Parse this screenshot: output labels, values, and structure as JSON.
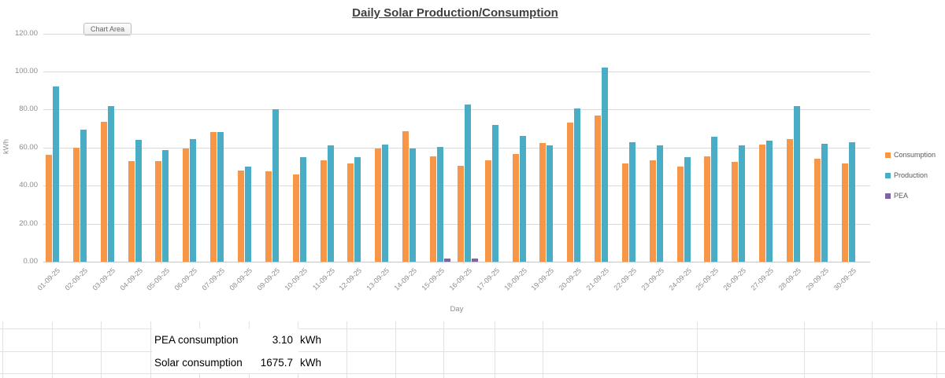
{
  "chart_area_label": "Chart Area",
  "chart_data": {
    "type": "bar",
    "title": "Daily Solar Production/Consumption",
    "xlabel": "Day",
    "ylabel": "kWh",
    "ylim": [
      0,
      120
    ],
    "y_ticks": [
      0,
      20,
      40,
      60,
      80,
      100,
      120
    ],
    "y_tick_labels": [
      "0.00",
      "20.00",
      "40.00",
      "60.00",
      "80.00",
      "100.00",
      "120.00"
    ],
    "grid": true,
    "legend_position": "right",
    "categories": [
      "01-09-25",
      "02-09-25",
      "03-09-25",
      "04-09-25",
      "05-09-25",
      "06-09-25",
      "07-09-25",
      "08-09-25",
      "09-09-25",
      "10-09-25",
      "11-09-25",
      "12-09-25",
      "13-09-25",
      "14-09-25",
      "15-09-25",
      "16-09-25",
      "17-09-25",
      "18-09-25",
      "19-09-25",
      "20-09-25",
      "21-09-25",
      "22-09-25",
      "23-09-25",
      "24-09-25",
      "25-09-25",
      "26-09-25",
      "27-09-25",
      "28-09-25",
      "29-09-25",
      "30-09-25"
    ],
    "series": [
      {
        "name": "Consumption",
        "color": "#F79646",
        "values": [
          56,
          60,
          73.5,
          53,
          53,
          59.5,
          68,
          48,
          47.5,
          46,
          53.5,
          51.5,
          59.5,
          68.5,
          55.5,
          50.5,
          53.5,
          56.5,
          62.5,
          73,
          77,
          51.5,
          53.5,
          50,
          55.5,
          52.5,
          61.5,
          64.5,
          54,
          51.5
        ]
      },
      {
        "name": "Production",
        "color": "#4BACC6",
        "values": [
          92,
          69.5,
          82,
          64,
          58.5,
          64.5,
          68,
          50,
          80,
          55,
          61,
          55,
          61.5,
          59.5,
          60.5,
          82.5,
          72,
          66,
          61,
          80.5,
          102,
          63,
          61,
          55,
          65.5,
          61,
          63.5,
          82,
          62,
          63
        ]
      },
      {
        "name": "PEA",
        "color": "#8064A2",
        "values": [
          0,
          0,
          0,
          0,
          0,
          0,
          0,
          0,
          0,
          0,
          0,
          0,
          0,
          0,
          1.6,
          1.5,
          0,
          0,
          0,
          0,
          0,
          0,
          0,
          0,
          0,
          0,
          0,
          0,
          0,
          0
        ]
      }
    ]
  },
  "table": {
    "rows": [
      {
        "label": "PEA consumption",
        "value": "3.10",
        "unit": "kWh"
      },
      {
        "label": "Solar consumption",
        "value": "1675.7",
        "unit": "kWh"
      }
    ]
  }
}
